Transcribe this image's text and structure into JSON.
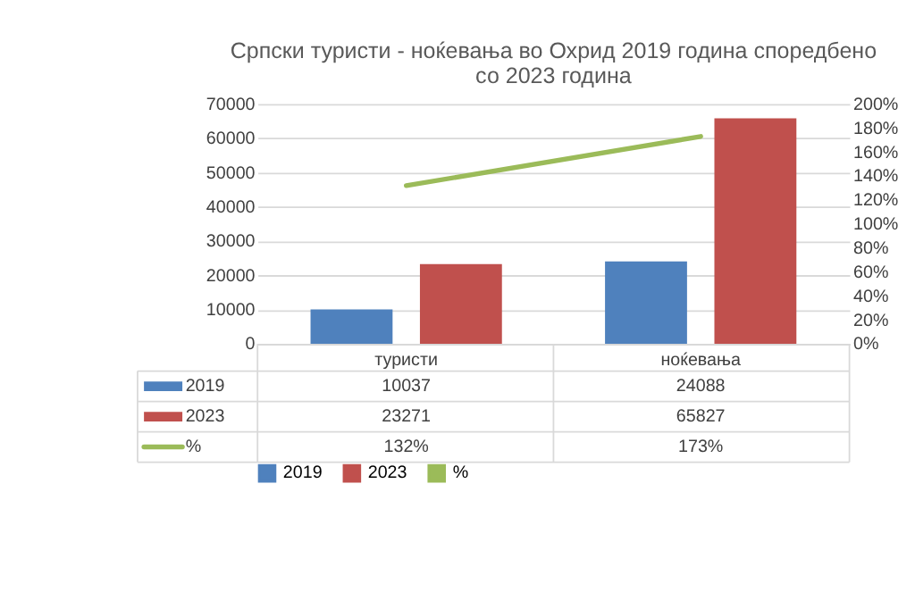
{
  "chart_data": {
    "type": "bar",
    "title": "Српски туристи - ноќевања во Охрид 2019 година споредбено\nсо 2023 година",
    "categories": [
      "туристи",
      "ноќевања"
    ],
    "series": [
      {
        "name": "2019",
        "color": "#4f81bd",
        "values": [
          10037,
          24088
        ]
      },
      {
        "name": "2023",
        "color": "#c0504d",
        "values": [
          23271,
          65827
        ]
      },
      {
        "name": "%",
        "color": "#9bbb59",
        "type": "line",
        "axis": "y2",
        "values": [
          132,
          173
        ],
        "value_labels": [
          "132%",
          "173%"
        ]
      }
    ],
    "ylim": [
      0,
      70000
    ],
    "yticks": [
      0,
      10000,
      20000,
      30000,
      40000,
      50000,
      60000,
      70000
    ],
    "y2lim": [
      0,
      200
    ],
    "y2ticks": [
      {
        "value": 0,
        "label": "0%"
      },
      {
        "value": 20,
        "label": "20%"
      },
      {
        "value": 40,
        "label": "40%"
      },
      {
        "value": 60,
        "label": "60%"
      },
      {
        "value": 80,
        "label": "80%"
      },
      {
        "value": 100,
        "label": "100%"
      },
      {
        "value": 120,
        "label": "120%"
      },
      {
        "value": 140,
        "label": "140%"
      },
      {
        "value": 160,
        "label": "160%"
      },
      {
        "value": 180,
        "label": "180%"
      },
      {
        "value": 200,
        "label": "200%"
      }
    ],
    "grid": "y",
    "legend": "bottom",
    "data_labels": true
  }
}
